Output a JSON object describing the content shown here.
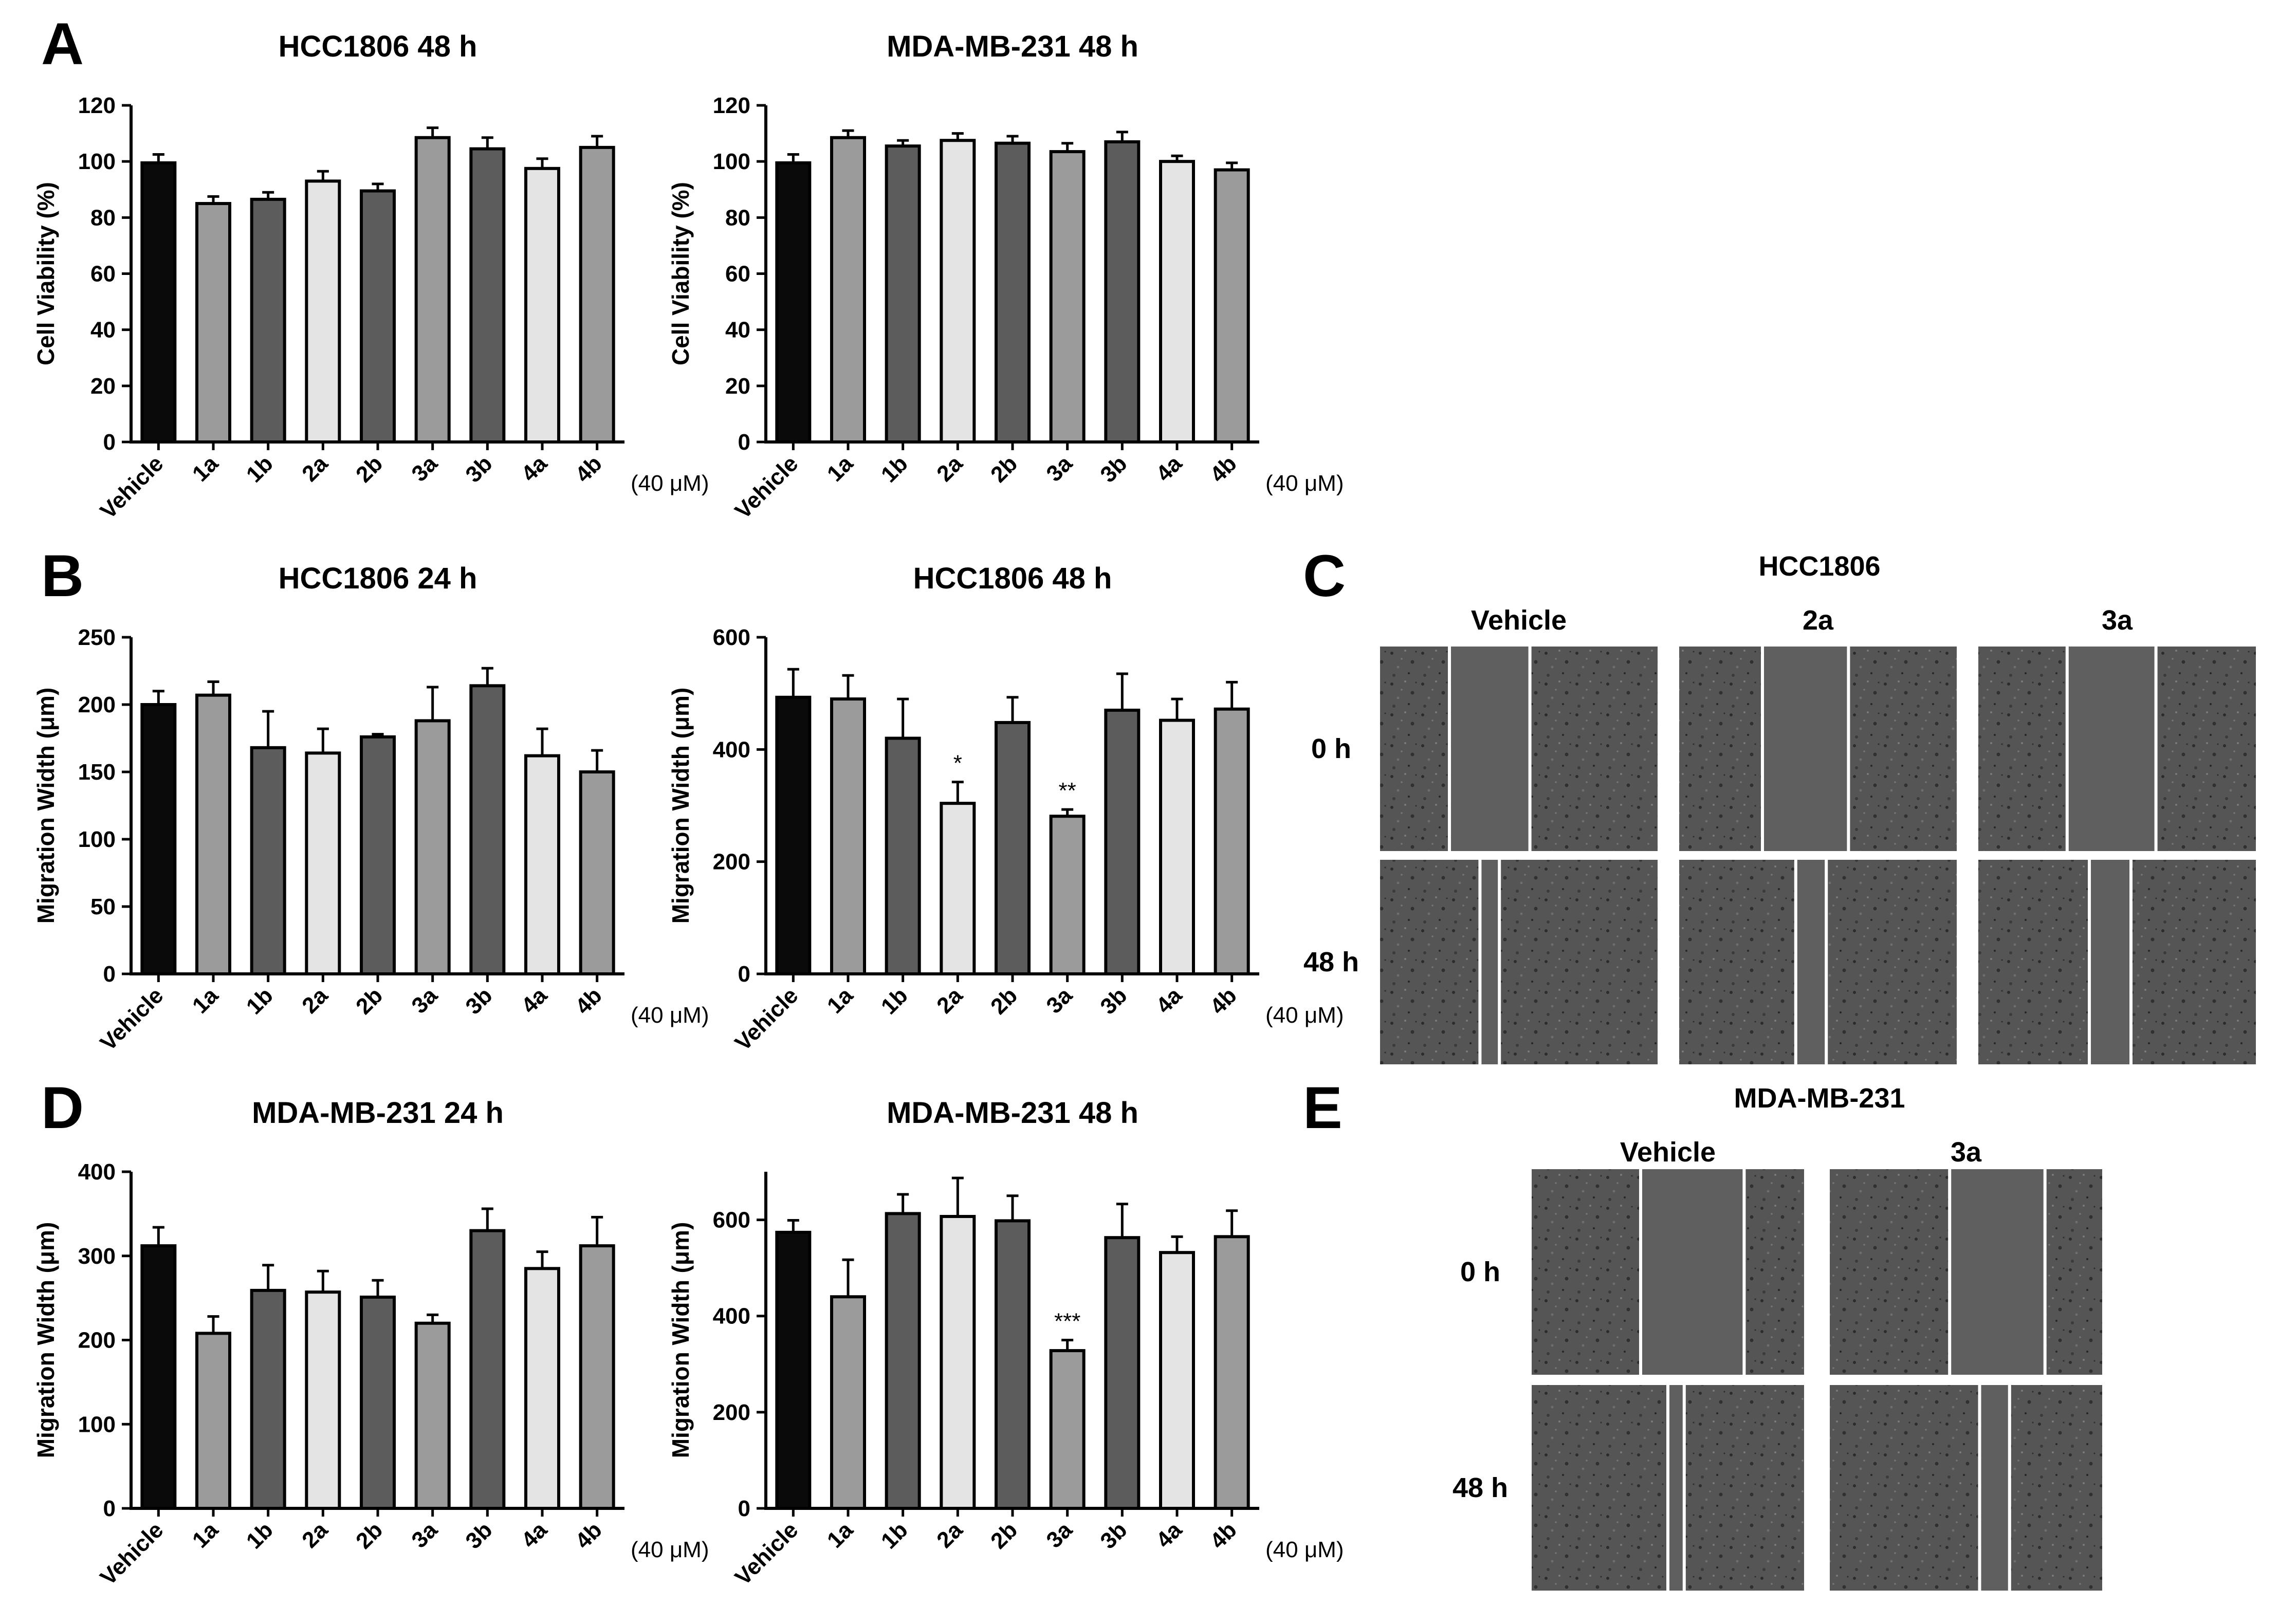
{
  "figure": {
    "panel_letters": [
      "A",
      "B",
      "C",
      "D",
      "E"
    ],
    "chart_colors": {
      "black": "#0a0a0a",
      "mid": "#9b9b9b",
      "dark": "#5c5c5c",
      "light": "#e4e4e4"
    },
    "micrograph_colors": {
      "gap": "#5f5f5f",
      "cells": "#4a4a4a",
      "line": "#ffffff"
    }
  },
  "chart_data": [
    {
      "id": "A1",
      "type": "bar",
      "title": "HCC1806 48 h",
      "ylabel": "Cell Viability (%)",
      "xlabel": "",
      "x_suffix": "(40 μM)",
      "ylim": [
        0,
        120
      ],
      "yticks": [
        0,
        20,
        40,
        60,
        80,
        100,
        120
      ],
      "categories": [
        "Vehicle",
        "1a",
        "1b",
        "2a",
        "2b",
        "3a",
        "3b",
        "4a",
        "4b"
      ],
      "values": [
        99.5,
        85,
        86.5,
        93,
        89.5,
        108.5,
        104.5,
        97.5,
        105
      ],
      "errors": [
        3,
        2.5,
        2.5,
        3.5,
        2.5,
        3.5,
        4,
        3.5,
        4
      ],
      "colors": [
        "black",
        "mid",
        "dark",
        "light",
        "dark",
        "mid",
        "dark",
        "light",
        "mid"
      ],
      "significance": [
        "",
        "",
        "",
        "",
        "",
        "",
        "",
        "",
        ""
      ]
    },
    {
      "id": "A2",
      "type": "bar",
      "title": "MDA-MB-231 48 h",
      "ylabel": "Cell Viability (%)",
      "xlabel": "",
      "x_suffix": "(40 μM)",
      "ylim": [
        0,
        120
      ],
      "yticks": [
        0,
        20,
        40,
        60,
        80,
        100,
        120
      ],
      "categories": [
        "Vehicle",
        "1a",
        "1b",
        "2a",
        "2b",
        "3a",
        "3b",
        "4a",
        "4b"
      ],
      "values": [
        99.5,
        108.5,
        105.5,
        107.5,
        106.5,
        103.5,
        107,
        100,
        97
      ],
      "errors": [
        3,
        2.5,
        2,
        2.5,
        2.5,
        3,
        3.5,
        2,
        2.5
      ],
      "colors": [
        "black",
        "mid",
        "dark",
        "light",
        "dark",
        "mid",
        "dark",
        "light",
        "mid"
      ],
      "significance": [
        "",
        "",
        "",
        "",
        "",
        "",
        "",
        "",
        ""
      ]
    },
    {
      "id": "B1",
      "type": "bar",
      "title": "HCC1806 24 h",
      "ylabel": "Migration Width (μm)",
      "xlabel": "",
      "x_suffix": "(40 μM)",
      "ylim": [
        0,
        250
      ],
      "yticks": [
        0,
        50,
        100,
        150,
        200,
        250
      ],
      "categories": [
        "Vehicle",
        "1a",
        "1b",
        "2a",
        "2b",
        "3a",
        "3b",
        "4a",
        "4b"
      ],
      "values": [
        200,
        207,
        168,
        164,
        176,
        188,
        214,
        162,
        150
      ],
      "errors": [
        10,
        10,
        27,
        18,
        2,
        25,
        13,
        20,
        16
      ],
      "colors": [
        "black",
        "mid",
        "dark",
        "light",
        "dark",
        "mid",
        "dark",
        "light",
        "mid"
      ],
      "significance": [
        "",
        "",
        "",
        "",
        "",
        "",
        "",
        "",
        ""
      ]
    },
    {
      "id": "B2",
      "type": "bar",
      "title": "HCC1806 48 h",
      "ylabel": "Migration Width (μm)",
      "xlabel": "",
      "x_suffix": "(40 μM)",
      "ylim": [
        0,
        600
      ],
      "yticks": [
        0,
        200,
        400,
        600
      ],
      "categories": [
        "Vehicle",
        "1a",
        "1b",
        "2a",
        "2b",
        "3a",
        "3b",
        "4a",
        "4b"
      ],
      "values": [
        493,
        490,
        420,
        304,
        448,
        281,
        470,
        452,
        472
      ],
      "errors": [
        50,
        42,
        70,
        38,
        45,
        12,
        65,
        38,
        48
      ],
      "colors": [
        "black",
        "mid",
        "dark",
        "light",
        "dark",
        "mid",
        "dark",
        "light",
        "mid"
      ],
      "significance": [
        "",
        "",
        "",
        "*",
        "",
        "**",
        "",
        "",
        ""
      ]
    },
    {
      "id": "D1",
      "type": "bar",
      "title": "MDA-MB-231 24 h",
      "ylabel": "Migration Width (μm)",
      "xlabel": "",
      "x_suffix": "(40 μM)",
      "ylim": [
        0,
        400
      ],
      "yticks": [
        0,
        100,
        200,
        300,
        400
      ],
      "categories": [
        "Vehicle",
        "1a",
        "1b",
        "2a",
        "2b",
        "3a",
        "3b",
        "4a",
        "4b"
      ],
      "values": [
        312,
        208,
        259,
        257,
        251,
        220,
        330,
        285,
        312
      ],
      "errors": [
        22,
        20,
        30,
        25,
        20,
        10,
        26,
        20,
        34
      ],
      "colors": [
        "black",
        "mid",
        "dark",
        "light",
        "dark",
        "mid",
        "dark",
        "light",
        "mid"
      ],
      "significance": [
        "",
        "",
        "",
        "",
        "",
        "",
        "",
        "",
        ""
      ]
    },
    {
      "id": "D2",
      "type": "bar",
      "title": "MDA-MB-231 48 h",
      "ylabel": "Migration Width (μm)",
      "xlabel": "",
      "x_suffix": "(40 μM)",
      "ylim": [
        0,
        700
      ],
      "yticks": [
        0,
        200,
        400,
        600
      ],
      "categories": [
        "Vehicle",
        "1a",
        "1b",
        "2a",
        "2b",
        "3a",
        "3b",
        "4a",
        "4b"
      ],
      "values": [
        574,
        440,
        613,
        607,
        598,
        328,
        563,
        532,
        565
      ],
      "errors": [
        25,
        77,
        40,
        80,
        52,
        22,
        70,
        33,
        54
      ],
      "colors": [
        "black",
        "mid",
        "dark",
        "light",
        "dark",
        "mid",
        "dark",
        "light",
        "mid"
      ],
      "significance": [
        "",
        "",
        "",
        "",
        "",
        "***",
        "",
        "",
        ""
      ]
    }
  ],
  "panel_c": {
    "title": "HCC1806",
    "columns": [
      "Vehicle",
      "2a",
      "3a"
    ],
    "rows": [
      "0 h",
      "48 h"
    ],
    "gap_fractions": [
      [
        0.25,
        0.54
      ],
      [
        0.3,
        0.61
      ],
      [
        0.32,
        0.64
      ],
      [
        0.36,
        0.43
      ],
      [
        0.42,
        0.53
      ],
      [
        0.4,
        0.55
      ]
    ]
  },
  "panel_e": {
    "title": "MDA-MB-231",
    "columns": [
      "Vehicle",
      "3a"
    ],
    "rows": [
      "0 h",
      "48 h"
    ],
    "gap_fractions": [
      [
        0.4,
        0.78
      ],
      [
        0.44,
        0.79
      ],
      [
        0.5,
        0.56
      ],
      [
        0.55,
        0.66
      ]
    ]
  }
}
